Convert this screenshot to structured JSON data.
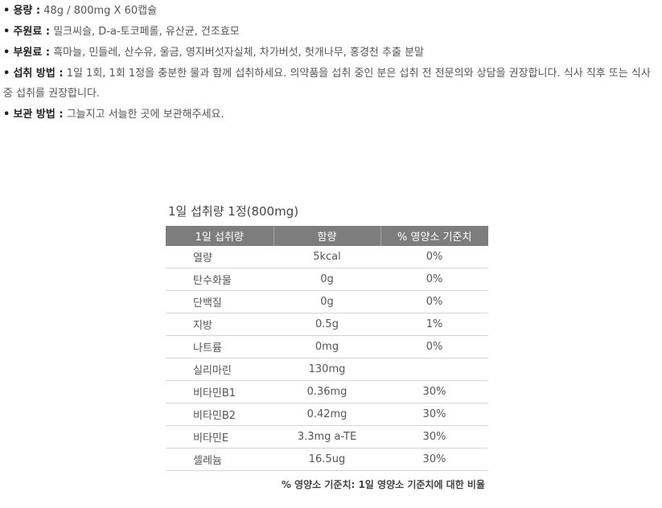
{
  "product_info": [
    {
      "label": "용량 :",
      "text": "48g / 800mg X 60캡슐"
    },
    {
      "label": "주원료 :",
      "text": "밀크씨슬, D-a-토코페롤, 유산균, 건조효모"
    },
    {
      "label": "부원료 :",
      "text": "흑마늘, 민들레, 산수유, 울금, 영지버섯자실체, 차가버섯, 헛개나무, 홍경천 추출 분말"
    },
    {
      "label": "섭취 방법 :",
      "text": "1일 1회, 1회 1정을 충분한 물과 함께 섭취하세요. 의약품을 섭취 중인 분은 섭취 전 전문의와 상담을 권장합니다. 식사 직후 또는 식사 중 섭취를 권장합니다."
    },
    {
      "label": "보관 방법 :",
      "text": "그늘지고 서늘한 곳에 보관해주세요."
    }
  ],
  "bullet": "•",
  "nutrition": {
    "title": "1일 섭취량 1정(800mg)",
    "headers": [
      "1일 섭취량",
      "함량",
      "% 영양소 기준치"
    ],
    "rows": [
      [
        "열량",
        "5kcal",
        "0%"
      ],
      [
        "탄수화물",
        "0g",
        "0%"
      ],
      [
        "단백질",
        "0g",
        "0%"
      ],
      [
        "지방",
        "0.5g",
        "1%"
      ],
      [
        "나트륨",
        "0mg",
        "0%"
      ],
      [
        "실리마린",
        "130mg",
        ""
      ],
      [
        "비타민B1",
        "0.36mg",
        "30%"
      ],
      [
        "비타민B2",
        "0.42mg",
        "30%"
      ],
      [
        "비타민E",
        "3.3mg a-TE",
        "30%"
      ],
      [
        "셀레늄",
        "16.5ug",
        "30%"
      ]
    ],
    "footnote": "% 영양소 기준치: 1일 영양소 기준치에 대한 비율"
  },
  "colors": {
    "header_bg": "#7d7d7d",
    "row_border": "#d6d6d6"
  }
}
